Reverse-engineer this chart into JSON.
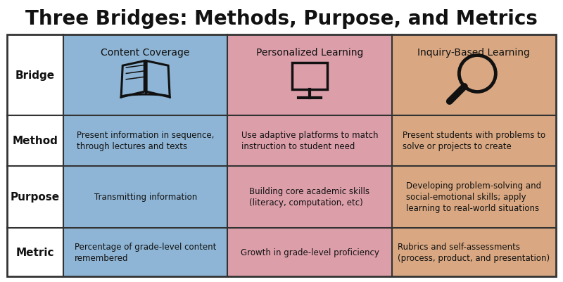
{
  "title": "Three Bridges: Methods, Purpose, and Metrics",
  "title_fontsize": 20,
  "background_color": "#ffffff",
  "line_color": "#333333",
  "col_colors": [
    "#8eb5d5",
    "#dc9faa",
    "#d9a882"
  ],
  "row_label_fontsize": 11,
  "col_header_fontsize": 10,
  "cell_fontsize": 8.5,
  "row_labels": [
    "Bridge",
    "Method",
    "Purpose",
    "Metric"
  ],
  "col_headers": [
    "Content Coverage",
    "Personalized Learning",
    "Inquiry-Based Learning"
  ],
  "cells": [
    [
      "",
      "",
      ""
    ],
    [
      "Present information in sequence,\nthrough lectures and texts",
      "Use adaptive platforms to match\ninstruction to student need",
      "Present students with problems to\nsolve or projects to create"
    ],
    [
      "Transmitting information",
      "Building core academic skills\n(literacy, computation, etc)",
      "Developing problem-solving and\nsocial-emotional skills; apply\nlearning to real-world situations"
    ],
    [
      "Percentage of grade-level content\nremembered",
      "Growth in grade-level proficiency",
      "Rubrics and self-assessments\n(process, product, and presentation)"
    ]
  ],
  "fig_width": 8.0,
  "fig_height": 4.02,
  "dpi": 100
}
